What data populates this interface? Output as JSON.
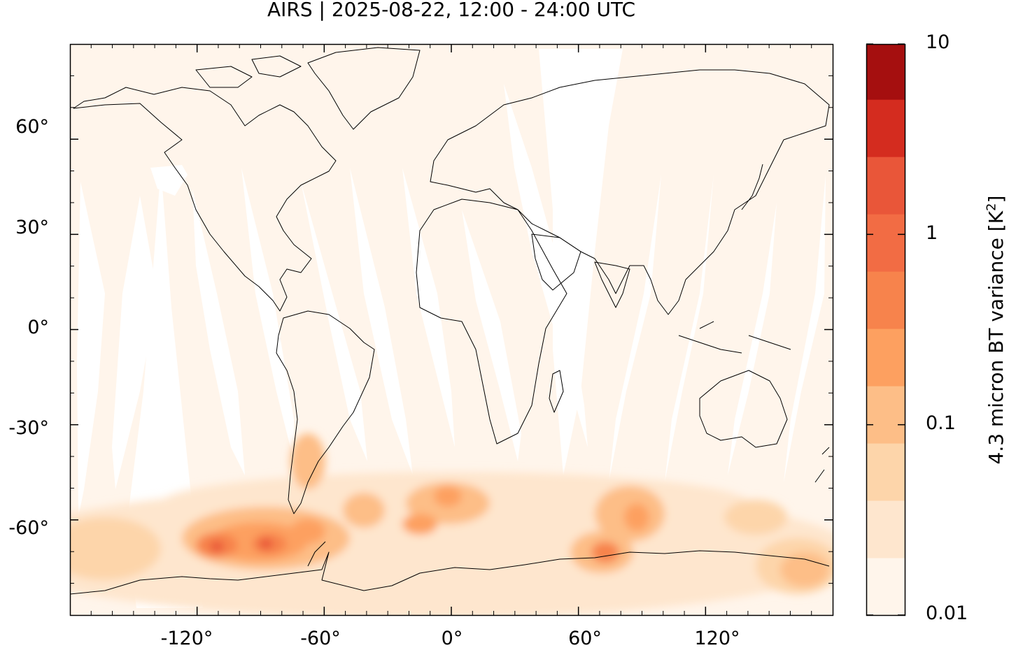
{
  "title": "AIRS | 2025-08-22, 12:00 - 24:00 UTC",
  "map": {
    "projection": "equirectangular",
    "lon_range": [
      -180,
      180
    ],
    "lat_range": [
      -90,
      90
    ],
    "y_ticks": [
      "60°",
      "30°",
      "0°",
      "-30°",
      "-60°"
    ],
    "x_ticks": [
      "-120°",
      "-60°",
      "0°",
      "60°",
      "120°"
    ],
    "background_color": "#fff5eb",
    "coastline_color": "#000000"
  },
  "colorbar": {
    "label": "4.3 micron BT variance [K",
    "label_sup": "2",
    "label_close": "]",
    "scale": "log",
    "ticks": [
      "10",
      "1",
      "0.1",
      "0.01"
    ],
    "levels": [
      {
        "from": 0.01,
        "to": 0.02,
        "color": "#fff5eb"
      },
      {
        "from": 0.02,
        "to": 0.04,
        "color": "#fee6ce"
      },
      {
        "from": 0.04,
        "to": 0.08,
        "color": "#fdd5aa"
      },
      {
        "from": 0.08,
        "to": 0.16,
        "color": "#fdbe87"
      },
      {
        "from": 0.16,
        "to": 0.32,
        "color": "#fda060"
      },
      {
        "from": 0.32,
        "to": 0.64,
        "color": "#f7834c"
      },
      {
        "from": 0.64,
        "to": 1.28,
        "color": "#f26c44"
      },
      {
        "from": 1.28,
        "to": 2.56,
        "color": "#e95639"
      },
      {
        "from": 2.56,
        "to": 5.12,
        "color": "#d42c1f"
      },
      {
        "from": 5.12,
        "to": 10.0,
        "color": "#a50f0f"
      }
    ]
  }
}
